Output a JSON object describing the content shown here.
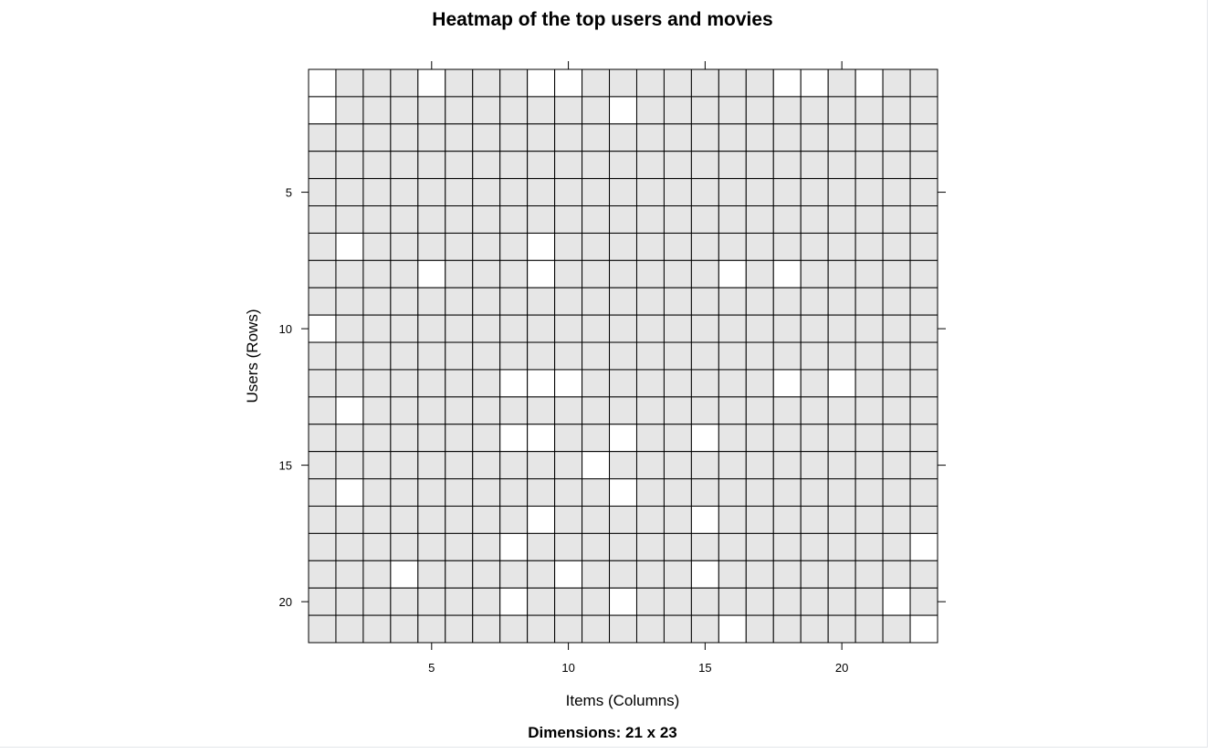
{
  "chart_data": {
    "type": "heatmap",
    "title": "Heatmap of the top users and movies",
    "subtitle": "Dimensions: 21 x 23",
    "xlabel": "Items (Columns)",
    "ylabel": "Users (Rows)",
    "n_rows": 21,
    "n_cols": 23,
    "x_ticks": [
      5,
      10,
      15,
      20
    ],
    "y_ticks": [
      5,
      10,
      15,
      20
    ],
    "colors": {
      "filled": "#e6e6e6",
      "empty": "#ffffff",
      "grid": "#000000"
    },
    "empty_cells": [
      [
        1,
        1
      ],
      [
        1,
        5
      ],
      [
        1,
        9
      ],
      [
        1,
        10
      ],
      [
        1,
        18
      ],
      [
        1,
        19
      ],
      [
        1,
        21
      ],
      [
        2,
        1
      ],
      [
        2,
        12
      ],
      [
        7,
        2
      ],
      [
        7,
        9
      ],
      [
        8,
        5
      ],
      [
        8,
        9
      ],
      [
        8,
        16
      ],
      [
        8,
        18
      ],
      [
        10,
        1
      ],
      [
        12,
        8
      ],
      [
        12,
        9
      ],
      [
        12,
        10
      ],
      [
        12,
        18
      ],
      [
        12,
        20
      ],
      [
        13,
        2
      ],
      [
        14,
        8
      ],
      [
        14,
        9
      ],
      [
        14,
        12
      ],
      [
        14,
        15
      ],
      [
        15,
        11
      ],
      [
        16,
        2
      ],
      [
        16,
        12
      ],
      [
        17,
        9
      ],
      [
        17,
        15
      ],
      [
        18,
        8
      ],
      [
        18,
        23
      ],
      [
        19,
        4
      ],
      [
        19,
        10
      ],
      [
        19,
        15
      ],
      [
        20,
        8
      ],
      [
        20,
        12
      ],
      [
        20,
        22
      ],
      [
        21,
        16
      ],
      [
        21,
        23
      ]
    ]
  }
}
